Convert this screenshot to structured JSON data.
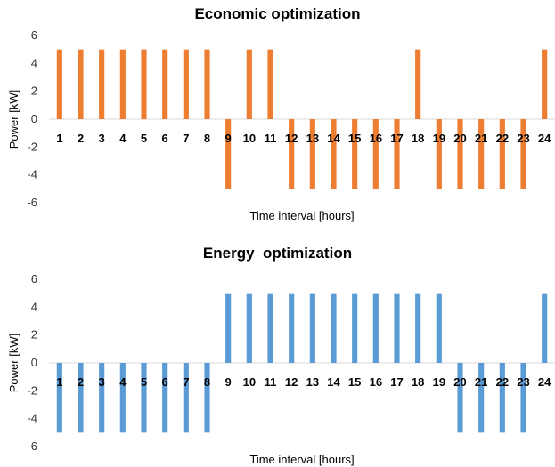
{
  "chart_data": [
    {
      "type": "bar",
      "title": "Economic optimization",
      "xlabel": "Time interval [hours]",
      "ylabel": "Power [kW]",
      "ylim": [
        -6,
        6
      ],
      "yticks": [
        6,
        4,
        2,
        0,
        -2,
        -4,
        -6
      ],
      "grid": true,
      "legend": "none",
      "color": "#ED7D31",
      "categories": [
        "1",
        "2",
        "3",
        "4",
        "5",
        "6",
        "7",
        "8",
        "9",
        "10",
        "11",
        "12",
        "13",
        "14",
        "15",
        "16",
        "17",
        "18",
        "19",
        "20",
        "21",
        "22",
        "23",
        "24"
      ],
      "values": [
        5,
        5,
        5,
        5,
        5,
        5,
        5,
        5,
        -5,
        5,
        5,
        -5,
        -5,
        -5,
        -5,
        -5,
        -5,
        5,
        -5,
        -5,
        -5,
        -5,
        -5,
        5
      ]
    },
    {
      "type": "bar",
      "title": "Energy  optimization",
      "xlabel": "Time interval [hours]",
      "ylabel": "Power [kW]",
      "ylim": [
        -6,
        6
      ],
      "yticks": [
        6,
        4,
        2,
        0,
        -2,
        -4,
        -6
      ],
      "grid": true,
      "legend": "none",
      "color": "#5B9BD5",
      "categories": [
        "1",
        "2",
        "3",
        "4",
        "5",
        "6",
        "7",
        "8",
        "9",
        "10",
        "11",
        "12",
        "13",
        "14",
        "15",
        "16",
        "17",
        "18",
        "19",
        "20",
        "21",
        "22",
        "23",
        "24"
      ],
      "values": [
        -5,
        -5,
        -5,
        -5,
        -5,
        -5,
        -5,
        -5,
        5,
        5,
        5,
        5,
        5,
        5,
        5,
        5,
        5,
        5,
        5,
        -5,
        -5,
        -5,
        -5,
        5
      ]
    }
  ]
}
